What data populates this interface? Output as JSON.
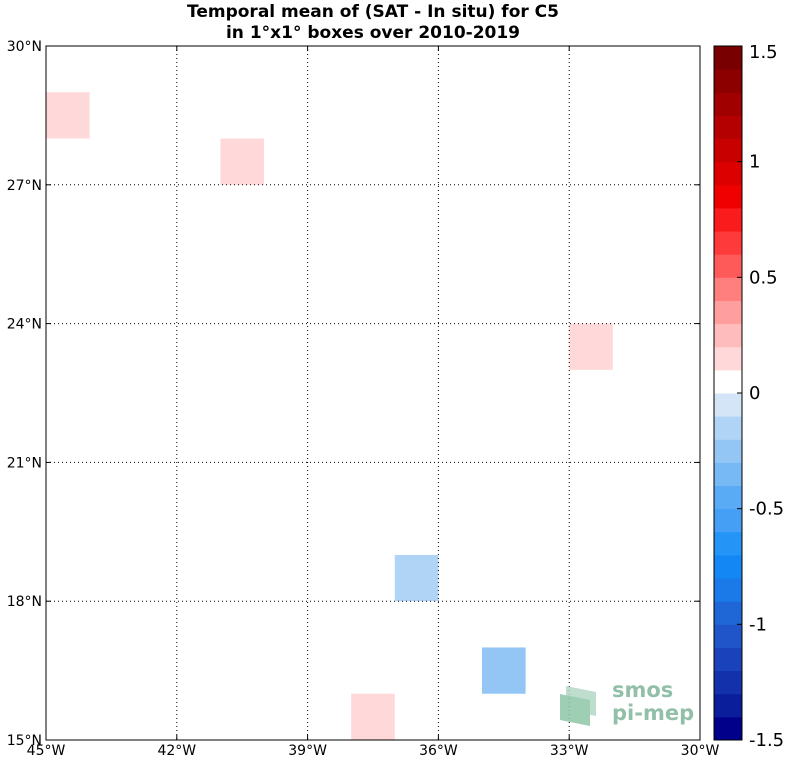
{
  "chart_data": {
    "type": "heatmap",
    "title_line1": "Temporal mean of (SAT - In situ) for C5",
    "title_line2": "in 1°x1° boxes over 2010-2019",
    "xlim": [
      -45,
      -30
    ],
    "ylim": [
      15,
      30
    ],
    "grid": true,
    "x_ticks": [
      {
        "value": -45,
        "label": "45°W"
      },
      {
        "value": -42,
        "label": "42°W"
      },
      {
        "value": -39,
        "label": "39°W"
      },
      {
        "value": -36,
        "label": "36°W"
      },
      {
        "value": -33,
        "label": "33°W"
      },
      {
        "value": -30,
        "label": "30°W"
      }
    ],
    "y_ticks": [
      {
        "value": 15,
        "label": "15°N"
      },
      {
        "value": 18,
        "label": "18°N"
      },
      {
        "value": 21,
        "label": "21°N"
      },
      {
        "value": 24,
        "label": "24°N"
      },
      {
        "value": 27,
        "label": "27°N"
      },
      {
        "value": 30,
        "label": "30°N"
      }
    ],
    "cells": [
      {
        "lon": -45,
        "lat": 28,
        "value": 0.15
      },
      {
        "lon": -41,
        "lat": 27,
        "value": 0.15
      },
      {
        "lon": -33,
        "lat": 23,
        "value": 0.15
      },
      {
        "lon": -37,
        "lat": 18,
        "value": -0.15
      },
      {
        "lon": -35,
        "lat": 16,
        "value": -0.25
      },
      {
        "lon": -38,
        "lat": 15,
        "value": 0.15
      }
    ],
    "colorbar": {
      "range": [
        -1.5,
        1.5
      ],
      "levels": 30,
      "ticks": [
        {
          "value": 1.5,
          "label": "1.5"
        },
        {
          "value": 1,
          "label": "1"
        },
        {
          "value": 0.5,
          "label": "0.5"
        },
        {
          "value": 0,
          "label": "0"
        },
        {
          "value": -0.5,
          "label": "-0.5"
        },
        {
          "value": -1,
          "label": "-1"
        },
        {
          "value": -1.5,
          "label": "-1.5"
        }
      ],
      "colors": [
        "#00008b",
        "#0a1e9c",
        "#1231ab",
        "#1a43bb",
        "#1f55c8",
        "#1f66d6",
        "#1c79e8",
        "#1388f5",
        "#2594f7",
        "#449ff5",
        "#5aabf5",
        "#77b9f5",
        "#93c6f5",
        "#b0d4f6",
        "#d3e5f7",
        "#ffffff",
        "#ffd9d9",
        "#ffbcbc",
        "#ff9e9e",
        "#ff7f7f",
        "#ff5a5a",
        "#ff3a3a",
        "#fa1c1c",
        "#f00000",
        "#dc0000",
        "#c80000",
        "#b40000",
        "#a00000",
        "#8c0000",
        "#780000"
      ]
    }
  },
  "logo": {
    "line1": "smos",
    "line2": "pi-mep"
  }
}
